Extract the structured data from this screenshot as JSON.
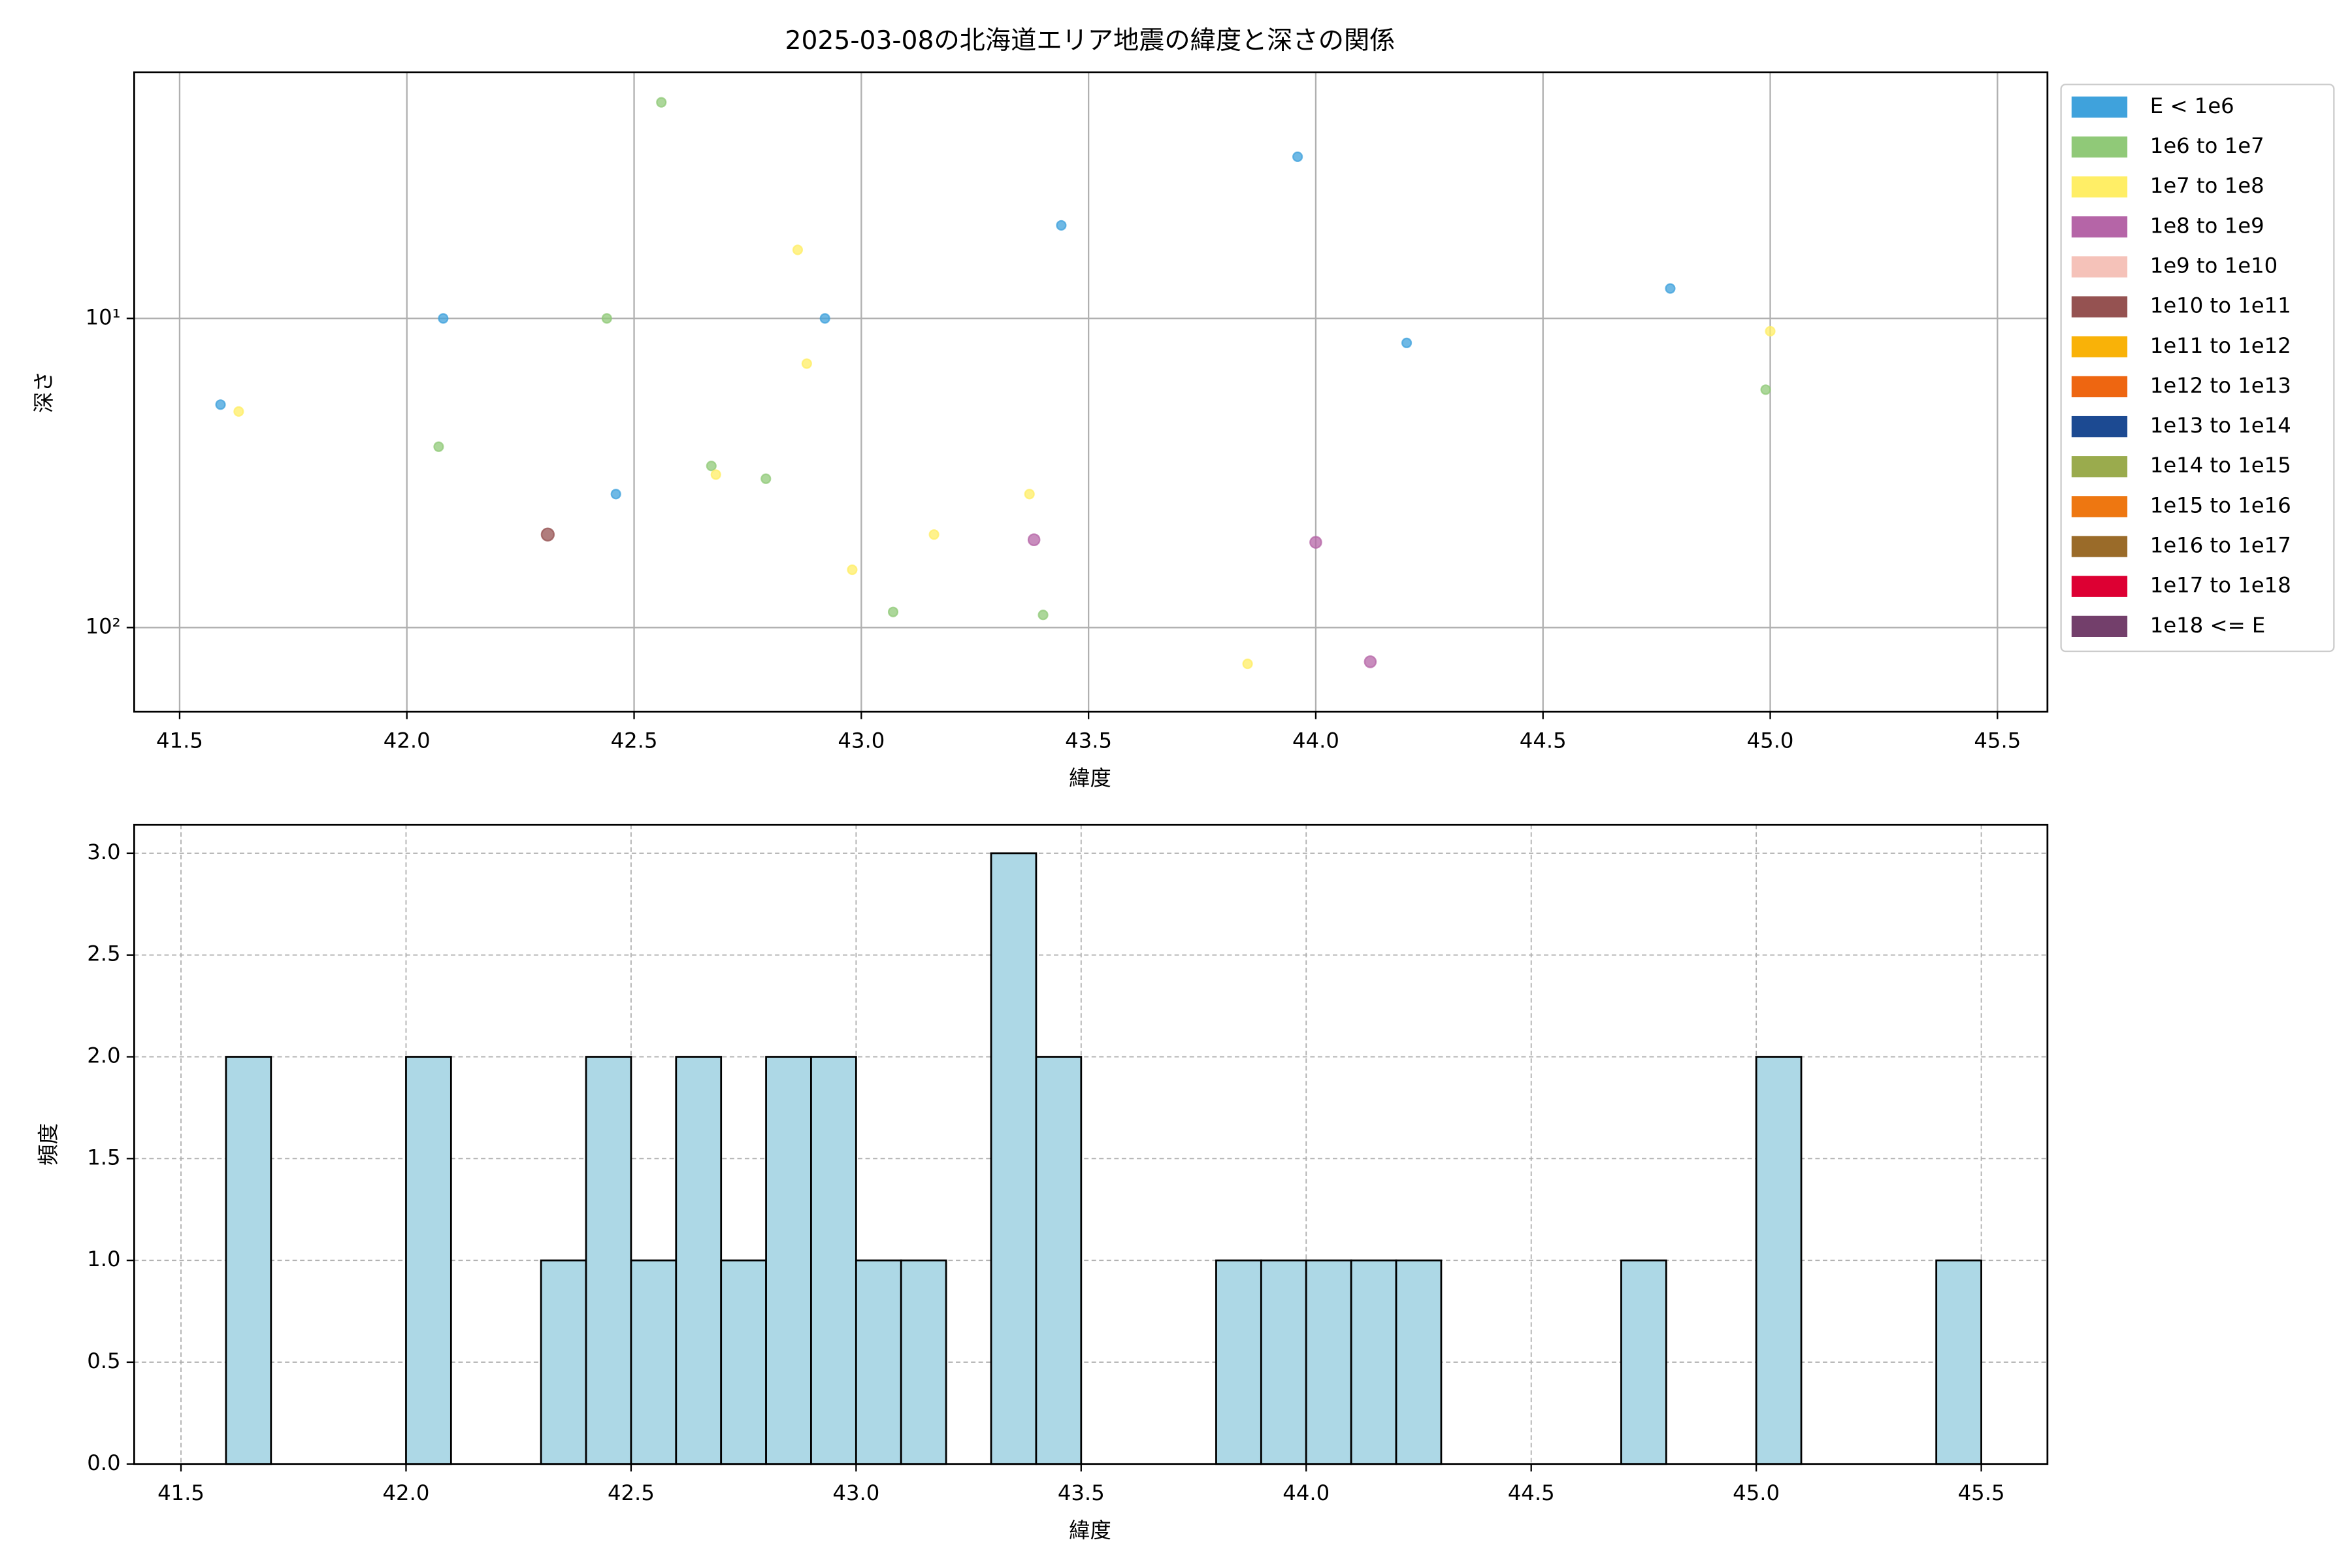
{
  "chart_data": [
    {
      "type": "scatter",
      "title": "2025-03-08の北海道エリア地震の緯度と深さの関係",
      "x_label": "緯度",
      "y_label": "深さ",
      "xlim": [
        41.4,
        45.61
      ],
      "xticks": [
        41.5,
        {
          "value": 42,
          "label": "42.0"
        },
        42.5,
        {
          "value": 43,
          "label": "43.0"
        },
        43.5,
        {
          "value": 44,
          "label": "44.0"
        },
        44.5,
        {
          "value": 45,
          "label": "45.0"
        },
        45.5
      ],
      "ylim": [
        1.6,
        187
      ],
      "y_log": true,
      "y_inverted": true,
      "yticks": [
        {
          "value": 10,
          "label": "10¹"
        },
        {
          "value": 100,
          "label": "10²"
        }
      ],
      "grid": true,
      "legend": "outside right",
      "alpha": 0.75,
      "series": [
        {
          "name": "E < 1e6",
          "color": "#3fa2dc",
          "marker_size": 4,
          "x": [
            41.59,
            42.08,
            42.46,
            42.92,
            43.44,
            43.96,
            44.2,
            44.78
          ],
          "values": [
            19,
            10,
            37,
            10,
            5,
            3,
            12,
            8
          ]
        },
        {
          "name": "1e6 to 1e7",
          "color": "#90c978",
          "marker_size": 4,
          "x": [
            42.07,
            42.44,
            42.56,
            42.67,
            42.79,
            43.07,
            43.4,
            44.99
          ],
          "values": [
            26,
            10,
            2,
            30,
            33,
            89,
            91,
            17
          ]
        },
        {
          "name": "1e7 to 1e8",
          "color": "#ffee66",
          "marker_size": 4,
          "x": [
            41.63,
            42.68,
            42.86,
            42.88,
            42.98,
            43.16,
            43.37,
            43.85,
            45.0
          ],
          "values": [
            20,
            32,
            6,
            14,
            65,
            50,
            37,
            131,
            11
          ]
        },
        {
          "name": "1e8 to 1e9",
          "color": "#b565a7",
          "marker_size": 5,
          "x": [
            43.38,
            44.0,
            44.12
          ],
          "values": [
            52,
            53,
            129
          ]
        },
        {
          "name": "1e9 to 1e10",
          "color": "#f5c2b9",
          "marker_size": 5,
          "x": [],
          "values": []
        },
        {
          "name": "1e10 to 1e11",
          "color": "#955251",
          "marker_size": 5.5,
          "x": [
            42.31
          ],
          "values": [
            50
          ]
        },
        {
          "name": "1e11 to 1e12",
          "color": "#f9b208",
          "marker_size": 6,
          "x": [],
          "values": []
        },
        {
          "name": "1e12 to 1e13",
          "color": "#ee6611",
          "marker_size": 6,
          "x": [],
          "values": []
        },
        {
          "name": "1e13 to 1e14",
          "color": "#1c4a92",
          "marker_size": 6,
          "x": [],
          "values": []
        },
        {
          "name": "1e14 to 1e15",
          "color": "#9aab4d",
          "marker_size": 6,
          "x": [],
          "values": []
        },
        {
          "name": "1e15 to 1e16",
          "color": "#ee7711",
          "marker_size": 6,
          "x": [],
          "values": []
        },
        {
          "name": "1e16 to 1e17",
          "color": "#9a6b29",
          "marker_size": 6,
          "x": [],
          "values": []
        },
        {
          "name": "1e17 to 1e18",
          "color": "#dd0033",
          "marker_size": 6,
          "x": [],
          "values": []
        },
        {
          "name": "1e18 <= E",
          "color": "#733f6b",
          "marker_size": 6,
          "x": [],
          "values": []
        }
      ]
    },
    {
      "type": "histogram",
      "x_label": "緯度",
      "y_label": "頻度",
      "color": "#add8e6",
      "edge_color": "#000000",
      "xlim": [
        41.396,
        45.647
      ],
      "xticks": [
        41.5,
        {
          "value": 42,
          "label": "42.0"
        },
        42.5,
        {
          "value": 43,
          "label": "43.0"
        },
        43.5,
        {
          "value": 44,
          "label": "44.0"
        },
        44.5,
        {
          "value": 45,
          "label": "45.0"
        },
        45.5
      ],
      "ylim": [
        0,
        3.14
      ],
      "yticks": [
        {
          "value": 0,
          "label": "0.0"
        },
        0.5,
        {
          "value": 1,
          "label": "1.0"
        },
        1.5,
        {
          "value": 2,
          "label": "2.0"
        },
        2.5,
        {
          "value": 3,
          "label": "3.0"
        }
      ],
      "grid": true,
      "grid_style": "dashed",
      "bins": [
        41.6,
        41.7,
        41.8,
        41.9,
        42.0,
        42.1,
        42.2,
        42.3,
        42.4,
        42.5,
        42.6,
        42.7,
        42.8,
        42.9,
        43.0,
        43.1,
        43.2,
        43.3,
        43.4,
        43.5,
        43.6,
        43.7,
        43.8,
        43.9,
        44.0,
        44.1,
        44.2,
        44.3,
        44.4,
        44.5,
        44.6,
        44.7,
        44.8,
        44.9,
        45.0,
        45.1,
        45.2,
        45.3,
        45.4,
        45.5
      ],
      "values": [
        2,
        0,
        0,
        0,
        2,
        0,
        0,
        1,
        2,
        1,
        2,
        1,
        2,
        2,
        1,
        1,
        0,
        3,
        2,
        0,
        0,
        0,
        1,
        1,
        1,
        1,
        1,
        0,
        0,
        0,
        0,
        1,
        0,
        0,
        2,
        0,
        0,
        0,
        1
      ]
    }
  ]
}
